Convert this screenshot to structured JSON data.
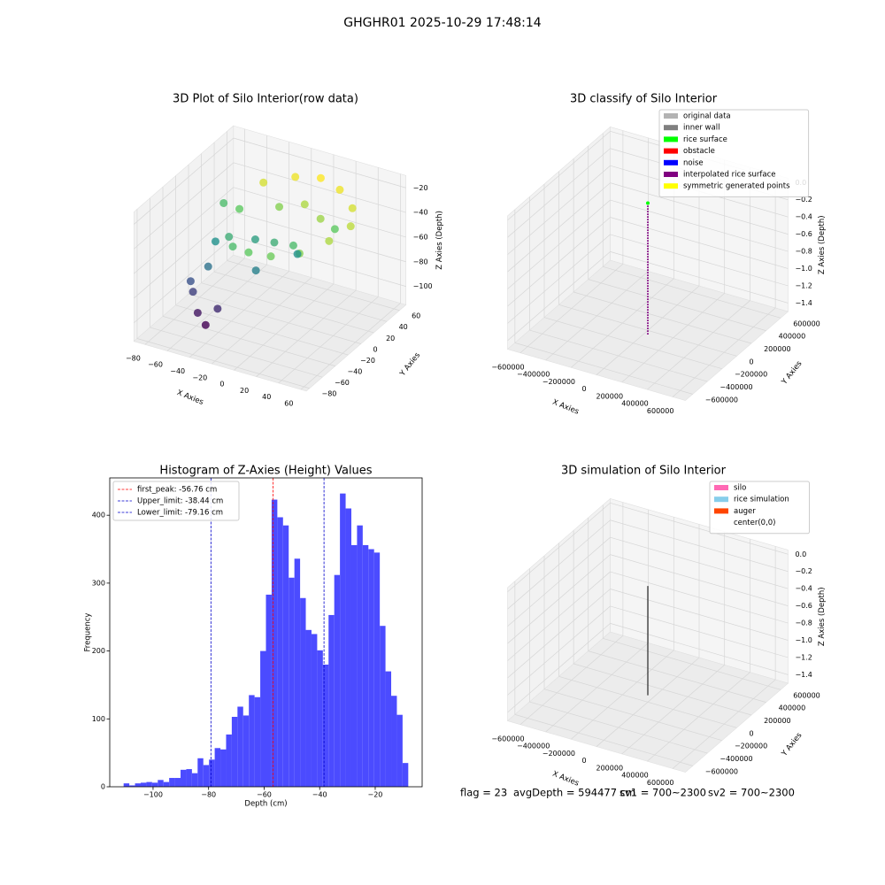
{
  "figure_title": "GHGHR01 2025-10-29 17:48:14",
  "footer": [
    "flag = 23",
    "avgDepth = 594477 cm",
    "sv1 = 700~2300",
    "sv2 = 700~2300"
  ],
  "chart_data": [
    {
      "type": "scatter3d",
      "title": "3D Plot of Silo Interior(row data)",
      "xlabel": "X Axies",
      "ylabel": "Y Axies",
      "zlabel": "Z Axies (Depth)",
      "xlim": [
        -90,
        65
      ],
      "ylim": [
        -85,
        70
      ],
      "zlim": [
        -115,
        -10
      ],
      "xticks": [
        {
          "value": -80,
          "label": "−80"
        },
        {
          "value": -60,
          "label": "−60"
        },
        {
          "value": -40,
          "label": "−40"
        },
        {
          "value": -20,
          "label": "−20"
        },
        0,
        20,
        40,
        60
      ],
      "yticks": [
        {
          "value": -80,
          "label": "−80"
        },
        {
          "value": -60,
          "label": "−60"
        },
        {
          "value": -40,
          "label": "−40"
        },
        {
          "value": -20,
          "label": "−20"
        },
        0,
        20,
        40,
        60
      ],
      "zticks": [
        {
          "value": -100,
          "label": "−100"
        },
        {
          "value": -80,
          "label": "−80"
        },
        {
          "value": -60,
          "label": "−60"
        },
        {
          "value": -40,
          "label": "−40"
        },
        {
          "value": -20,
          "label": "−20"
        }
      ],
      "cmap": "viridis",
      "x": [
        -40,
        -20,
        0,
        20,
        40,
        50,
        45,
        30,
        10,
        -10,
        -30,
        -45,
        -50,
        -20,
        0,
        20,
        10,
        -10,
        -30,
        -55,
        -60,
        -50,
        -40,
        -65,
        -35,
        30,
        -70,
        -60,
        5,
        -15
      ],
      "y": [
        30,
        45,
        50,
        45,
        30,
        10,
        -15,
        -35,
        -45,
        -45,
        -35,
        -15,
        10,
        20,
        25,
        15,
        -10,
        -5,
        0,
        -30,
        -45,
        -55,
        -60,
        -40,
        -50,
        20,
        20,
        -10,
        5,
        -25
      ],
      "z": [
        -25,
        -22,
        -20,
        -22,
        -25,
        -28,
        -30,
        -35,
        -38,
        -40,
        -45,
        -50,
        -40,
        -35,
        -30,
        -32,
        -45,
        -50,
        -55,
        -70,
        -85,
        -95,
        -100,
        -80,
        -90,
        -40,
        -45,
        -60,
        -60,
        -65
      ]
    },
    {
      "type": "scatter3d",
      "title": "3D classify of Silo Interior",
      "xlabel": "X Axies",
      "ylabel": "Y Axies",
      "zlabel": "Z Axies (Depth)",
      "xlim": [
        -700000,
        700000
      ],
      "ylim": [
        -700000,
        700000
      ],
      "zlim": [
        -1.5,
        0.05
      ],
      "xticks": [
        {
          "value": -600000,
          "label": "−600000"
        },
        {
          "value": -400000,
          "label": "−400000"
        },
        {
          "value": -200000,
          "label": "−200000"
        },
        0,
        200000,
        400000,
        600000
      ],
      "yticks": [
        {
          "value": -600000,
          "label": "−600000"
        },
        {
          "value": -400000,
          "label": "−400000"
        },
        {
          "value": -200000,
          "label": "−200000"
        },
        0,
        200000,
        400000,
        600000
      ],
      "zticks": [
        {
          "value": 0,
          "label": "0.0"
        },
        {
          "value": -0.2,
          "label": "−0.2"
        },
        {
          "value": -0.4,
          "label": "−0.4"
        },
        {
          "value": -0.6,
          "label": "−0.6"
        },
        {
          "value": -0.8,
          "label": "−0.8"
        },
        {
          "value": -1.0,
          "label": "−1.0"
        },
        {
          "value": -1.2,
          "label": "−1.2"
        },
        {
          "value": -1.4,
          "label": "−1.4"
        }
      ],
      "legend": "upper right",
      "series": [
        {
          "name": "original data",
          "color": "#b3b3b3"
        },
        {
          "name": "inner wall",
          "color": "#808080"
        },
        {
          "name": "rice surface",
          "color": "#00ff00",
          "x": [
            0
          ],
          "y": [
            0
          ],
          "z": [
            -0.02
          ]
        },
        {
          "name": "obstacle",
          "color": "#ff0000"
        },
        {
          "name": "noise",
          "color": "#0000ff"
        },
        {
          "name": "interpolated rice surface",
          "color": "#800080",
          "x": [
            0,
            0
          ],
          "y": [
            0,
            0
          ],
          "z": [
            -0.05,
            -1.55
          ]
        },
        {
          "name": "symmetric generated points",
          "color": "#ffff00"
        }
      ]
    },
    {
      "type": "histogram",
      "title": "Histogram of Z-Axies (Height) Values",
      "xlabel": "Depth (cm)",
      "ylabel": "Frequency",
      "color": "#4b4bff",
      "bins": [
        -110.6,
        -108.55,
        -106.5,
        -104.45,
        -102.4,
        -100.35,
        -98.3,
        -96.25,
        -94.2,
        -92.15,
        -90.1,
        -88.05,
        -86.0,
        -83.95,
        -81.9,
        -79.85,
        -77.8,
        -75.75,
        -73.7,
        -71.65,
        -69.6,
        -67.55,
        -65.5,
        -63.45,
        -61.4,
        -59.35,
        -57.3,
        -55.25,
        -53.2,
        -51.15,
        -49.1,
        -47.05,
        -45.0,
        -42.95,
        -40.9,
        -38.85,
        -36.8,
        -34.75,
        -32.7,
        -30.65,
        -28.6,
        -26.55,
        -24.5,
        -22.45,
        -20.4,
        -18.35,
        -16.3,
        -14.25,
        -12.2,
        -10.15,
        -8.1
      ],
      "values": [
        5,
        2,
        5,
        6,
        7,
        6,
        10,
        7,
        13,
        13,
        25,
        26,
        20,
        42,
        32,
        40,
        57,
        55,
        77,
        103,
        118,
        105,
        135,
        132,
        200,
        283,
        423,
        397,
        385,
        308,
        336,
        278,
        231,
        225,
        201,
        180,
        253,
        312,
        432,
        410,
        356,
        385,
        356,
        350,
        345,
        237,
        170,
        134,
        106,
        35
      ],
      "xlim": [
        -115.6,
        -3.1
      ],
      "ylim": [
        0,
        455
      ],
      "xticks": [
        {
          "value": -100,
          "label": "−100"
        },
        {
          "value": -80,
          "label": "−80"
        },
        {
          "value": -60,
          "label": "−60"
        },
        {
          "value": -40,
          "label": "−40"
        },
        {
          "value": -20,
          "label": "−20"
        }
      ],
      "yticks": [
        0,
        100,
        200,
        300,
        400
      ],
      "legend": "upper left",
      "lines": [
        {
          "name": "first_peak: -56.76 cm",
          "value": -56.76,
          "color": "#ff0000"
        },
        {
          "name": "Upper_limit: -38.44 cm",
          "value": -38.44,
          "color": "#0000cc"
        },
        {
          "name": "Lower_limit: -79.16 cm",
          "value": -79.16,
          "color": "#0000cc"
        }
      ]
    },
    {
      "type": "scatter3d",
      "title": "3D simulation of Silo Interior",
      "xlabel": "X Axies",
      "ylabel": "Y Axies",
      "zlabel": "Z Axies (Depth)",
      "xlim": [
        -700000,
        700000
      ],
      "ylim": [
        -700000,
        700000
      ],
      "zlim": [
        -1.5,
        0.05
      ],
      "xticks": [
        {
          "value": -600000,
          "label": "−600000"
        },
        {
          "value": -400000,
          "label": "−400000"
        },
        {
          "value": -200000,
          "label": "−200000"
        },
        0,
        200000,
        400000,
        600000
      ],
      "yticks": [
        {
          "value": -600000,
          "label": "−600000"
        },
        {
          "value": -400000,
          "label": "−400000"
        },
        {
          "value": -200000,
          "label": "−200000"
        },
        0,
        200000,
        400000,
        600000
      ],
      "zticks": [
        {
          "value": 0,
          "label": "0.0"
        },
        {
          "value": -0.2,
          "label": "−0.2"
        },
        {
          "value": -0.4,
          "label": "−0.4"
        },
        {
          "value": -0.6,
          "label": "−0.6"
        },
        {
          "value": -0.8,
          "label": "−0.8"
        },
        {
          "value": -1.0,
          "label": "−1.0"
        },
        {
          "value": -1.2,
          "label": "−1.2"
        },
        {
          "value": -1.4,
          "label": "−1.4"
        }
      ],
      "legend": "upper right",
      "series": [
        {
          "name": "silo",
          "color": "#ff69b4"
        },
        {
          "name": "rice simulation",
          "color": "#87ceeb"
        },
        {
          "name": "auger",
          "color": "#ff4500"
        },
        {
          "name": "center(0,0)",
          "color": "#ffffff"
        }
      ],
      "line": {
        "x": [
          0,
          0
        ],
        "y": [
          0,
          0
        ],
        "z": [
          -0.15,
          -1.42
        ],
        "color": "#000000"
      }
    }
  ]
}
